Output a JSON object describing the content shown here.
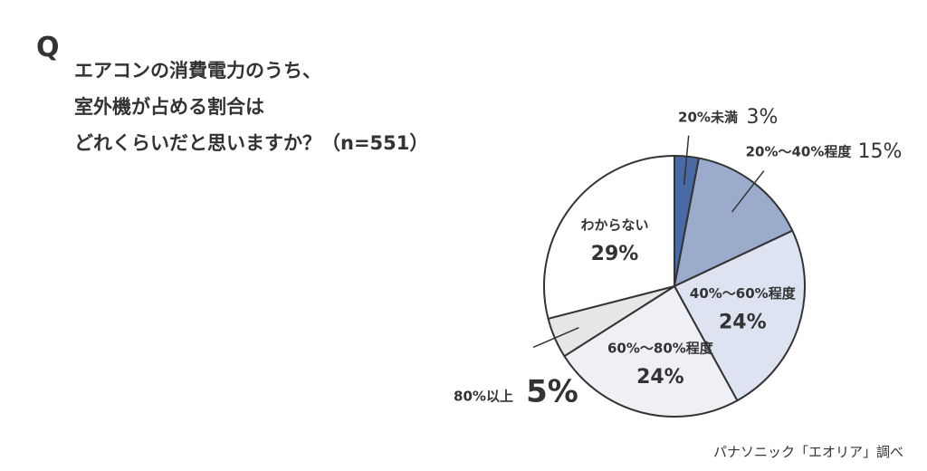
{
  "question": {
    "mark": "Q",
    "lines": [
      "エアコンの消費電力のうち、",
      "室外機が占める割合は",
      "どれくらいだと思いますか？（n=551）"
    ]
  },
  "source": "パナソニック「エオリア」調べ",
  "chart_data": {
    "type": "pie",
    "start_angle_deg": 0,
    "direction": "clockwise",
    "slices": [
      {
        "label": "20%未満",
        "value": 3,
        "value_label": "3%",
        "color": "#4a6aa5",
        "label_placement": "outside"
      },
      {
        "label": "20%～40%程度",
        "value": 15,
        "value_label": "15%",
        "color": "#9aabcb",
        "label_placement": "outside"
      },
      {
        "label": "40%～60%程度",
        "value": 24,
        "value_label": "24%",
        "color": "#dde3f0",
        "label_placement": "inside"
      },
      {
        "label": "60%～80%程度",
        "value": 24,
        "value_label": "24%",
        "color": "#eef0f6",
        "label_placement": "inside"
      },
      {
        "label": "80%以上",
        "value": 5,
        "value_label": "5%",
        "color": "#e6e6e6",
        "label_placement": "outside"
      },
      {
        "label": "わからない",
        "value": 29,
        "value_label": "29%",
        "color": "#ffffff",
        "label_placement": "inside"
      }
    ],
    "stroke_color": "#333333"
  }
}
